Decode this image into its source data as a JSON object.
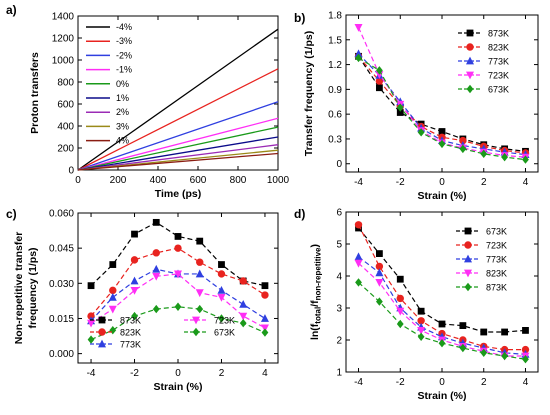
{
  "chart_data": [
    {
      "panel": "a)",
      "type": "line",
      "xlabel": "Time (ps)",
      "ylabel": "Proton transfers",
      "xlim": [
        0,
        1000
      ],
      "ylim": [
        0,
        1400
      ],
      "xticks": [
        0,
        200,
        400,
        600,
        800,
        1000
      ],
      "yticks": [
        0,
        200,
        400,
        600,
        800,
        1000,
        1200,
        1400
      ],
      "legend": "top-left",
      "series": [
        {
          "name": "-4%",
          "color": "#000000",
          "x": [
            0,
            1000
          ],
          "y": [
            0,
            1280
          ]
        },
        {
          "name": "-3%",
          "color": "#e8231f",
          "x": [
            0,
            1000
          ],
          "y": [
            0,
            920
          ]
        },
        {
          "name": "-2%",
          "color": "#2f3fe0",
          "x": [
            0,
            1000
          ],
          "y": [
            0,
            620
          ]
        },
        {
          "name": "-1%",
          "color": "#ff2ef5",
          "x": [
            0,
            1000
          ],
          "y": [
            0,
            470
          ]
        },
        {
          "name": "0%",
          "color": "#1a9a1a",
          "x": [
            0,
            1000
          ],
          "y": [
            0,
            390
          ]
        },
        {
          "name": "1%",
          "color": "#0b0b8a",
          "x": [
            0,
            1000
          ],
          "y": [
            0,
            300
          ]
        },
        {
          "name": "2%",
          "color": "#9b2bb5",
          "x": [
            0,
            1000
          ],
          "y": [
            0,
            230
          ]
        },
        {
          "name": "3%",
          "color": "#9a8a18",
          "x": [
            0,
            1000
          ],
          "y": [
            0,
            180
          ]
        },
        {
          "name": "4%",
          "color": "#8a1d12",
          "x": [
            0,
            1000
          ],
          "y": [
            0,
            150
          ]
        }
      ]
    },
    {
      "panel": "b)",
      "type": "line",
      "xlabel": "Strain (%)",
      "ylabel": "Transfer frequency (1/ps)",
      "xlim": [
        -4.6,
        4.6
      ],
      "ylim": [
        -0.1,
        1.8
      ],
      "xticks": [
        -4,
        -2,
        0,
        2,
        4
      ],
      "yticks": [
        0.0,
        0.3,
        0.6,
        0.9,
        1.2,
        1.5,
        1.8
      ],
      "legend": "top-right",
      "x": [
        -4,
        -3,
        -2,
        -1,
        0,
        1,
        2,
        3,
        4
      ],
      "series": [
        {
          "name": "873K",
          "color": "#000000",
          "marker": "square",
          "values": [
            1.3,
            0.92,
            0.62,
            0.48,
            0.39,
            0.3,
            0.23,
            0.18,
            0.15
          ]
        },
        {
          "name": "823K",
          "color": "#e8231f",
          "marker": "circle",
          "values": [
            1.3,
            1.0,
            0.7,
            0.45,
            0.32,
            0.28,
            0.21,
            0.16,
            0.13
          ]
        },
        {
          "name": "773K",
          "color": "#2f3fe0",
          "marker": "triangle-up",
          "values": [
            1.33,
            1.07,
            0.75,
            0.43,
            0.28,
            0.22,
            0.18,
            0.14,
            0.11
          ]
        },
        {
          "name": "723K",
          "color": "#ff2ef5",
          "marker": "triangle-down",
          "values": [
            1.65,
            1.08,
            0.72,
            0.4,
            0.25,
            0.19,
            0.14,
            0.1,
            0.08
          ]
        },
        {
          "name": "673K",
          "color": "#1a9a1a",
          "marker": "diamond",
          "values": [
            1.28,
            1.13,
            0.68,
            0.38,
            0.24,
            0.18,
            0.12,
            0.08,
            0.05
          ]
        }
      ]
    },
    {
      "panel": "c)",
      "type": "line",
      "xlabel": "Strain (%)",
      "ylabel_lines": [
        "Non-repetitive transfer",
        "frequency (1/ps)"
      ],
      "xlim": [
        -4.6,
        4.6
      ],
      "ylim": [
        -0.004,
        0.06
      ],
      "xticks": [
        -4,
        -2,
        0,
        2,
        4
      ],
      "yticks": [
        0.0,
        0.015,
        0.03,
        0.045,
        0.06
      ],
      "ytick_labels": [
        "0.000",
        "0.015",
        "0.030",
        "0.045",
        "0.060"
      ],
      "legend": "bottom-center",
      "x": [
        -4,
        -3,
        -2,
        -1,
        0,
        1,
        2,
        3,
        4
      ],
      "series": [
        {
          "name": "873K",
          "color": "#000000",
          "marker": "square",
          "values": [
            0.029,
            0.038,
            0.051,
            0.056,
            0.05,
            0.048,
            0.038,
            0.031,
            0.029
          ]
        },
        {
          "name": "823K",
          "color": "#e8231f",
          "marker": "circle",
          "values": [
            0.016,
            0.027,
            0.04,
            0.043,
            0.045,
            0.039,
            0.034,
            0.031,
            0.025
          ]
        },
        {
          "name": "773K",
          "color": "#2f3fe0",
          "marker": "triangle-up",
          "values": [
            0.014,
            0.024,
            0.031,
            0.036,
            0.034,
            0.034,
            0.027,
            0.021,
            0.015
          ]
        },
        {
          "name": "723K",
          "color": "#ff2ef5",
          "marker": "triangle-down",
          "values": [
            0.013,
            0.019,
            0.027,
            0.033,
            0.034,
            0.026,
            0.024,
            0.016,
            0.011
          ]
        },
        {
          "name": "673K",
          "color": "#1a9a1a",
          "marker": "diamond",
          "values": [
            0.006,
            0.01,
            0.016,
            0.019,
            0.02,
            0.019,
            0.015,
            0.013,
            0.009
          ]
        }
      ]
    },
    {
      "panel": "d)",
      "type": "line",
      "xlabel": "Strain (%)",
      "ylabel_parts": [
        "ln(f",
        "total",
        "/f",
        "non-repetitive",
        ")"
      ],
      "xlim": [
        -4.6,
        4.6
      ],
      "ylim": [
        1,
        6
      ],
      "xticks": [
        -4,
        -2,
        0,
        2,
        4
      ],
      "yticks": [
        1,
        2,
        3,
        4,
        5,
        6
      ],
      "legend": "top-right",
      "x": [
        -4,
        -3,
        -2,
        -1,
        0,
        1,
        2,
        3,
        4
      ],
      "series": [
        {
          "name": "673K",
          "color": "#000000",
          "marker": "square",
          "values": [
            5.5,
            4.7,
            3.9,
            2.9,
            2.5,
            2.45,
            2.25,
            2.25,
            2.3
          ]
        },
        {
          "name": "723K",
          "color": "#e8231f",
          "marker": "circle",
          "values": [
            5.6,
            4.3,
            3.3,
            2.6,
            2.2,
            2.0,
            1.8,
            1.7,
            1.7
          ]
        },
        {
          "name": "773K",
          "color": "#2f3fe0",
          "marker": "triangle-up",
          "values": [
            4.6,
            4.1,
            3.0,
            2.4,
            2.1,
            1.9,
            1.75,
            1.6,
            1.55
          ]
        },
        {
          "name": "823K",
          "color": "#ff2ef5",
          "marker": "triangle-down",
          "values": [
            4.4,
            3.8,
            2.9,
            2.3,
            2.0,
            1.8,
            1.65,
            1.5,
            1.5
          ]
        },
        {
          "name": "873K",
          "color": "#1a9a1a",
          "marker": "diamond",
          "values": [
            3.8,
            3.2,
            2.5,
            2.1,
            1.9,
            1.75,
            1.6,
            1.5,
            1.4
          ]
        }
      ]
    }
  ]
}
